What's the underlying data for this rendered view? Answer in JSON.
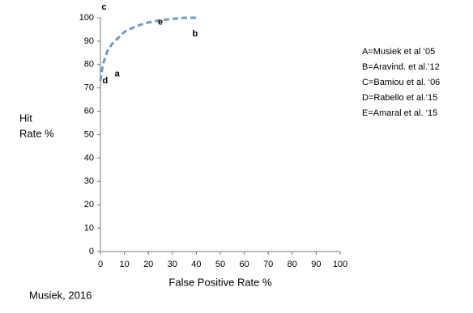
{
  "chart_data": {
    "type": "line",
    "xlabel": "False Positive Rate %",
    "ylabel": [
      "Hit",
      "Rate %"
    ],
    "x": [
      0,
      1,
      3,
      5,
      10,
      15,
      20,
      25,
      30,
      35,
      40
    ],
    "series": [
      {
        "color": "#6f9bc8",
        "values": [
          73,
          80,
          86,
          89,
          94,
          96.5,
          98,
          99,
          99.5,
          100,
          100
        ]
      }
    ],
    "points": [
      {
        "label": "a",
        "x": 7,
        "y": 76
      },
      {
        "label": "b",
        "x": 39.5,
        "y": 93
      },
      {
        "label": "c",
        "x": 1.5,
        "y": 104.5
      },
      {
        "label": "d",
        "x": 2,
        "y": 73
      },
      {
        "label": "e",
        "x": 25,
        "y": 98
      }
    ],
    "point_color": "#e3242b",
    "xlim": [
      0,
      100
    ],
    "ylim": [
      0,
      100
    ],
    "xticks": [
      0,
      10,
      20,
      30,
      40,
      50,
      60,
      70,
      80,
      90,
      100
    ],
    "yticks": [
      0,
      10,
      20,
      30,
      40,
      50,
      60,
      70,
      80,
      90,
      100
    ],
    "grid": false,
    "legend_text": [
      "A=Musiek et al ‘05",
      "B=Aravind. et al.’12",
      "C=Bamiou et al. ‘06",
      "D=Rabello et al.’15",
      "E=Amaral et al. ‘15"
    ],
    "source": "Musiek, 2016"
  }
}
